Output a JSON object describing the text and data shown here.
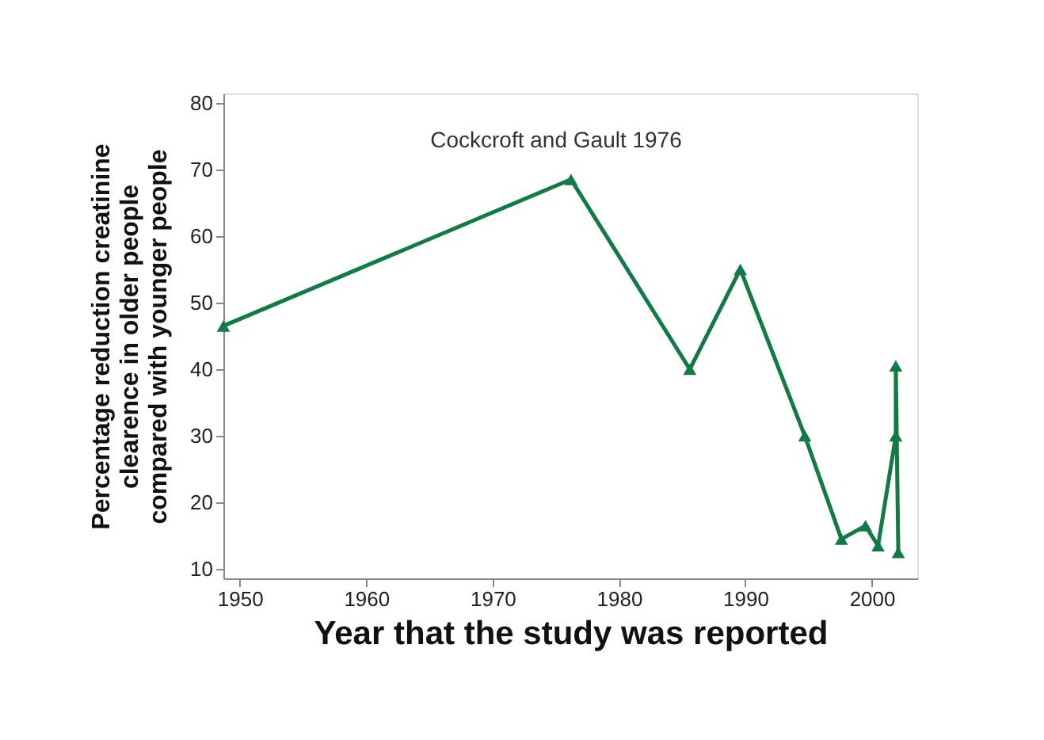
{
  "chart_data": {
    "type": "line",
    "xlabel": "Year that the study was reported",
    "ylabel": [
      "Percentage reduction creatinine",
      "clearence in older people",
      "compared with younger people"
    ],
    "x": [
      1948.7,
      1976.2,
      1985.6,
      1989.6,
      1994.7,
      1997.6,
      1999.5,
      2000.5,
      2001.9,
      2001.9,
      2002.1
    ],
    "series": [
      {
        "color": "#117a45",
        "values": [
          46.5,
          68.5,
          40,
          55,
          30,
          14.5,
          16.5,
          13.5,
          30,
          40.5,
          12.5
        ]
      }
    ],
    "xlim": [
      1948.7,
      2003.6
    ],
    "xticks": [
      1950,
      1960,
      1970,
      1980,
      1990,
      2000
    ],
    "ylim": [
      8.6,
      81.4
    ],
    "yticks": [
      10,
      20,
      30,
      40,
      50,
      60,
      70,
      80
    ],
    "annotations": [
      "Cockcroft and Gault 1976"
    ],
    "marker": "triangle",
    "line_style": "solid"
  }
}
